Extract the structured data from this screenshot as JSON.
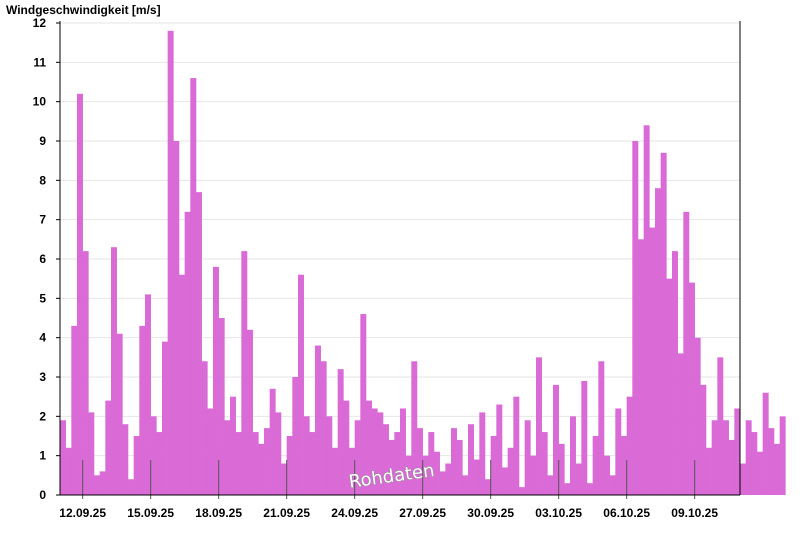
{
  "chart_data": {
    "type": "bar",
    "title": "",
    "ylabel": "Windgeschwindigkeit [m/s]",
    "xlabel": "",
    "ylim": [
      0,
      12
    ],
    "yticks": [
      0,
      1,
      2,
      3,
      4,
      5,
      6,
      7,
      8,
      9,
      10,
      11,
      12
    ],
    "xlim": [
      "2025-09-11T00:00",
      "2025-10-11T00:00"
    ],
    "xticks": [
      "12.09.25",
      "15.09.25",
      "18.09.25",
      "21.09.25",
      "24.09.25",
      "27.09.25",
      "30.09.25",
      "03.10.25",
      "06.10.25",
      "09.10.25"
    ],
    "grid": true,
    "legend": "none",
    "watermark": "Rohdaten",
    "color": "#d96ad6",
    "series": [
      {
        "interval_hours": 6,
        "values": [
          1.9,
          1.2,
          4.3,
          10.2,
          6.2,
          2.1,
          0.5,
          0.6,
          2.4,
          6.3,
          4.1,
          1.8,
          0.4,
          1.5,
          4.3,
          5.1,
          2.0,
          1.6,
          3.9,
          11.8,
          9.0,
          5.6,
          7.2,
          10.6,
          7.7,
          3.4,
          2.2,
          5.8,
          4.5,
          1.9,
          2.5,
          1.6,
          6.2,
          4.2,
          1.6,
          1.3,
          1.7,
          2.7,
          2.1,
          0.8,
          1.5,
          3.0,
          5.6,
          2.0,
          1.6,
          3.8,
          3.4,
          2.0,
          1.2,
          3.2,
          2.4,
          1.2,
          1.9,
          4.6,
          2.4,
          2.2,
          2.1,
          1.8,
          1.4,
          1.6,
          2.2,
          1.0,
          3.4,
          1.7,
          1.0,
          1.6,
          1.1,
          0.6,
          0.8,
          1.7,
          1.4,
          0.5,
          1.8,
          0.9,
          2.1,
          0.4,
          1.5,
          2.3,
          0.7,
          1.2,
          2.5,
          0.2,
          1.9,
          1.0,
          3.5,
          1.6,
          0.5,
          2.8,
          1.3,
          0.3,
          2.0,
          0.8,
          2.9,
          0.3,
          1.5,
          3.4,
          1.0,
          0.5,
          2.2,
          1.5,
          2.5,
          9.0,
          6.5,
          9.4,
          6.8,
          7.8,
          8.7,
          5.5,
          6.2,
          3.6,
          7.2,
          5.4,
          4.0,
          2.8,
          1.2,
          1.9,
          3.5,
          1.9,
          1.4,
          2.2,
          0.8,
          1.9,
          1.6,
          1.1,
          2.6,
          1.7,
          1.3,
          2.0
        ]
      }
    ]
  }
}
